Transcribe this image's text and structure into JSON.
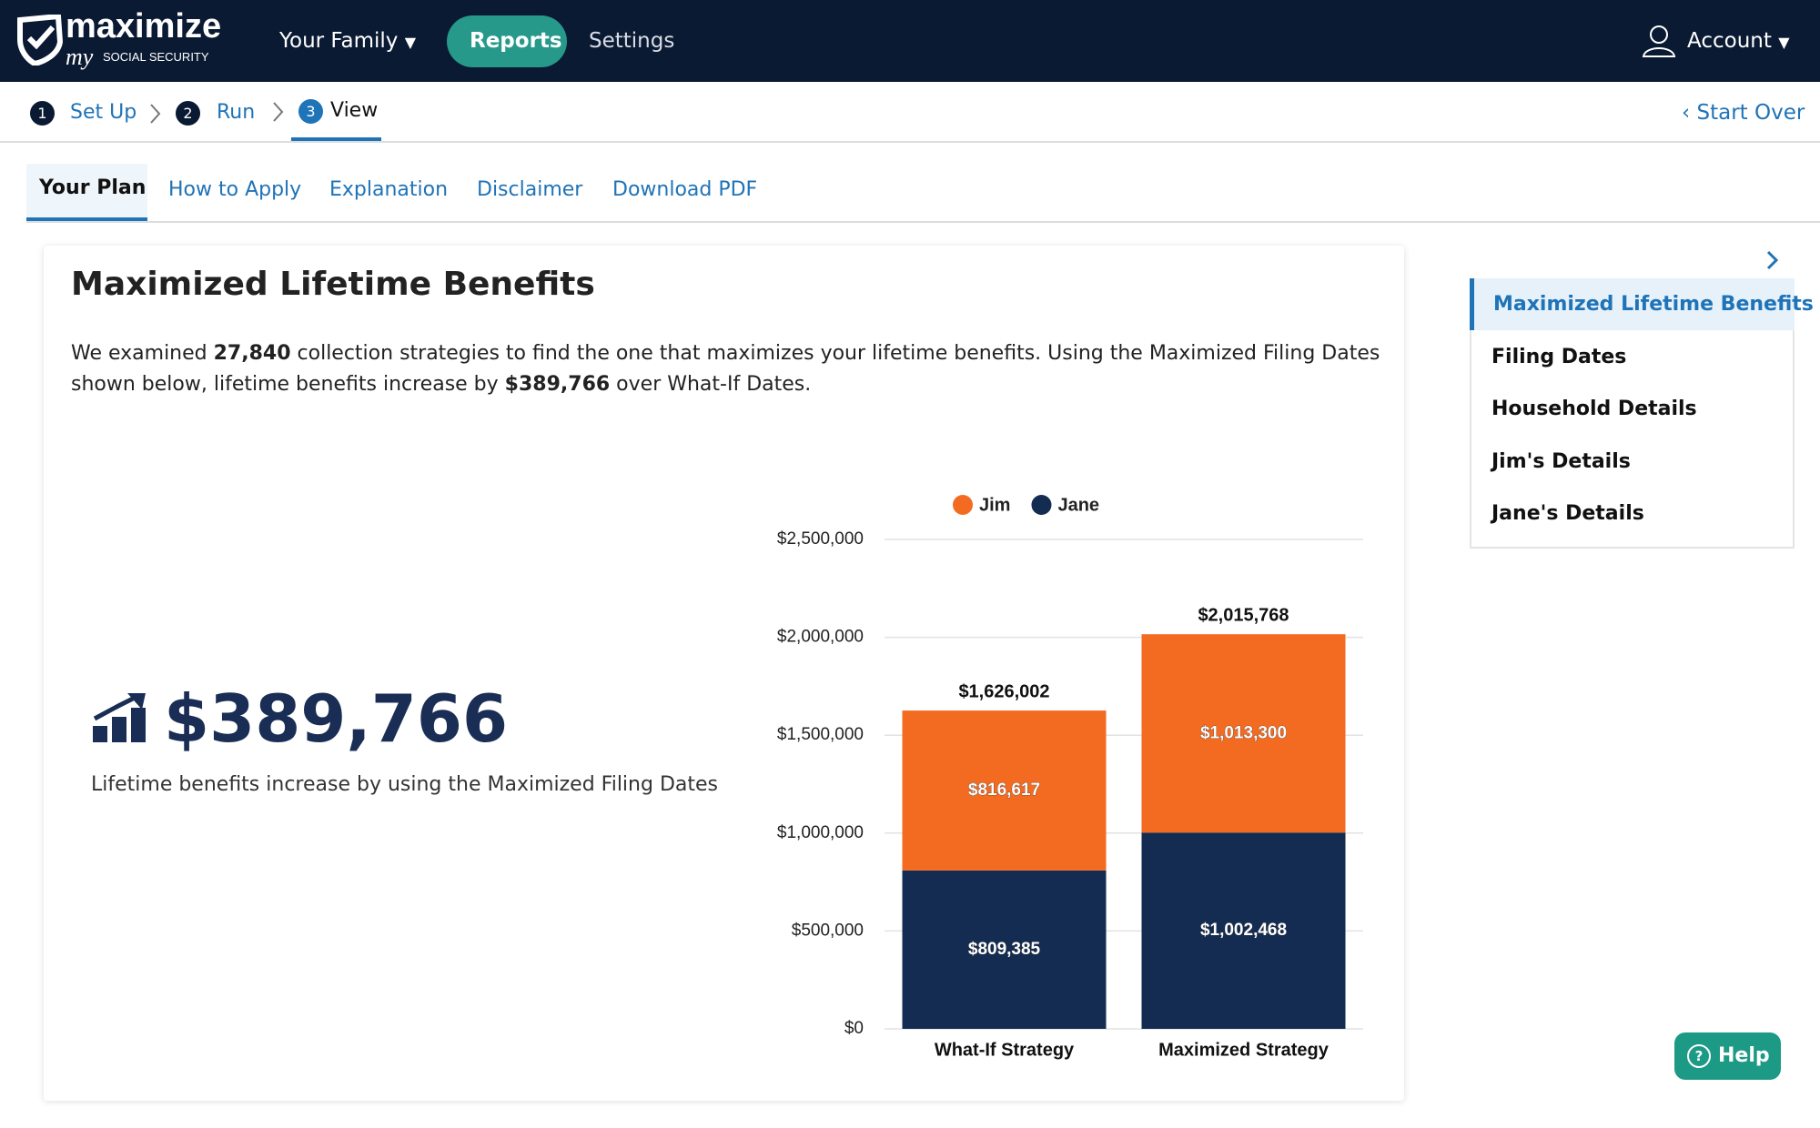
{
  "header": {
    "brand": "maximize",
    "brand_my": "my",
    "brand_sub": "SOCIAL SECURITY",
    "nav": [
      "Your Family",
      "Reports",
      "Settings"
    ],
    "account": "Account"
  },
  "steps": [
    {
      "number": 1,
      "label": "Set Up"
    },
    {
      "number": 2,
      "label": "Run"
    },
    {
      "number": 3,
      "label": "View"
    }
  ],
  "start_over": "Start Over",
  "tabs": [
    "Your Plan",
    "How to Apply",
    "Explanation",
    "Disclaimer",
    "Download PDF"
  ],
  "card": {
    "title": "Maximized Lifetime Benefits",
    "summary": [
      "We examined ",
      "27,840",
      " collection strategies to find the one that maximizes your lifetime benefits. Using the Maximized Filing Dates shown below, lifetime benefits increase by ",
      "$389,766",
      " over What-If Dates."
    ],
    "highlight": "$389,766",
    "highlight_caption": "Lifetime benefits increase by using the Maximized Filing Dates"
  },
  "chart_data": {
    "type": "stacked_bar",
    "categories": [
      "What-If Strategy",
      "Maximized Strategy"
    ],
    "series": [
      {
        "name": "Jim",
        "color": "#f26b21",
        "values": [
          816617,
          1013300
        ],
        "value_labels": [
          "$816,617",
          "$1,013,300"
        ]
      },
      {
        "name": "Jane",
        "color": "#142c52",
        "values": [
          809385,
          1002468
        ],
        "value_labels": [
          "$809,385",
          "$1,002,468"
        ]
      }
    ],
    "totals": [
      1626002,
      2015768
    ],
    "total_labels": [
      "$1,626,002",
      "$2,015,768"
    ],
    "ylim": [
      0,
      2500000
    ],
    "yticks": [
      {
        "value": 0,
        "label": "$0"
      },
      {
        "value": 500000,
        "label": "$500,000"
      },
      {
        "value": 1000000,
        "label": "$1,000,000"
      },
      {
        "value": 1500000,
        "label": "$1,500,000"
      },
      {
        "value": 2000000,
        "label": "$2,000,000"
      },
      {
        "value": 2500000,
        "label": "$2,500,000"
      }
    ],
    "grid": true,
    "legend": "top"
  },
  "sidebar": [
    "Maximized Lifetime Benefits",
    "Filing Dates",
    "Household Details",
    "Jim's Details",
    "Jane's Details"
  ],
  "help": "Help"
}
